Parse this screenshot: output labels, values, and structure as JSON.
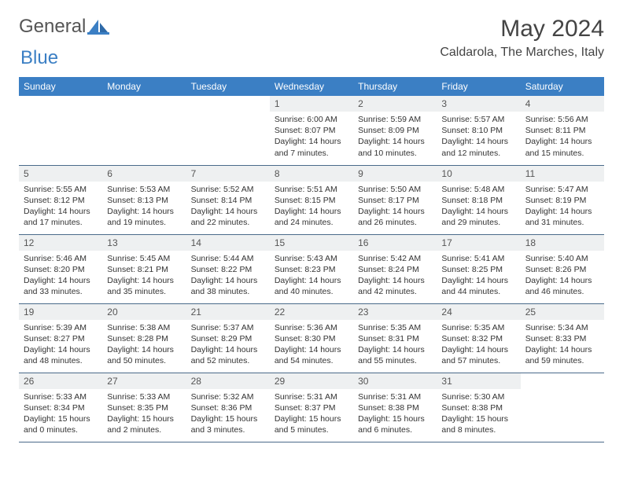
{
  "brand": {
    "text_gray": "General",
    "text_blue": "Blue",
    "icon_color": "#3b7fc4"
  },
  "title": "May 2024",
  "location": "Caldarola, The Marches, Italy",
  "colors": {
    "header_bg": "#3b7fc4",
    "daynum_bg": "#eef0f1",
    "row_border": "#4a6a8a"
  },
  "weekdays": [
    "Sunday",
    "Monday",
    "Tuesday",
    "Wednesday",
    "Thursday",
    "Friday",
    "Saturday"
  ],
  "weeks": [
    [
      {
        "n": "",
        "lines": []
      },
      {
        "n": "",
        "lines": []
      },
      {
        "n": "",
        "lines": []
      },
      {
        "n": "1",
        "lines": [
          "Sunrise: 6:00 AM",
          "Sunset: 8:07 PM",
          "Daylight: 14 hours",
          "and 7 minutes."
        ]
      },
      {
        "n": "2",
        "lines": [
          "Sunrise: 5:59 AM",
          "Sunset: 8:09 PM",
          "Daylight: 14 hours",
          "and 10 minutes."
        ]
      },
      {
        "n": "3",
        "lines": [
          "Sunrise: 5:57 AM",
          "Sunset: 8:10 PM",
          "Daylight: 14 hours",
          "and 12 minutes."
        ]
      },
      {
        "n": "4",
        "lines": [
          "Sunrise: 5:56 AM",
          "Sunset: 8:11 PM",
          "Daylight: 14 hours",
          "and 15 minutes."
        ]
      }
    ],
    [
      {
        "n": "5",
        "lines": [
          "Sunrise: 5:55 AM",
          "Sunset: 8:12 PM",
          "Daylight: 14 hours",
          "and 17 minutes."
        ]
      },
      {
        "n": "6",
        "lines": [
          "Sunrise: 5:53 AM",
          "Sunset: 8:13 PM",
          "Daylight: 14 hours",
          "and 19 minutes."
        ]
      },
      {
        "n": "7",
        "lines": [
          "Sunrise: 5:52 AM",
          "Sunset: 8:14 PM",
          "Daylight: 14 hours",
          "and 22 minutes."
        ]
      },
      {
        "n": "8",
        "lines": [
          "Sunrise: 5:51 AM",
          "Sunset: 8:15 PM",
          "Daylight: 14 hours",
          "and 24 minutes."
        ]
      },
      {
        "n": "9",
        "lines": [
          "Sunrise: 5:50 AM",
          "Sunset: 8:17 PM",
          "Daylight: 14 hours",
          "and 26 minutes."
        ]
      },
      {
        "n": "10",
        "lines": [
          "Sunrise: 5:48 AM",
          "Sunset: 8:18 PM",
          "Daylight: 14 hours",
          "and 29 minutes."
        ]
      },
      {
        "n": "11",
        "lines": [
          "Sunrise: 5:47 AM",
          "Sunset: 8:19 PM",
          "Daylight: 14 hours",
          "and 31 minutes."
        ]
      }
    ],
    [
      {
        "n": "12",
        "lines": [
          "Sunrise: 5:46 AM",
          "Sunset: 8:20 PM",
          "Daylight: 14 hours",
          "and 33 minutes."
        ]
      },
      {
        "n": "13",
        "lines": [
          "Sunrise: 5:45 AM",
          "Sunset: 8:21 PM",
          "Daylight: 14 hours",
          "and 35 minutes."
        ]
      },
      {
        "n": "14",
        "lines": [
          "Sunrise: 5:44 AM",
          "Sunset: 8:22 PM",
          "Daylight: 14 hours",
          "and 38 minutes."
        ]
      },
      {
        "n": "15",
        "lines": [
          "Sunrise: 5:43 AM",
          "Sunset: 8:23 PM",
          "Daylight: 14 hours",
          "and 40 minutes."
        ]
      },
      {
        "n": "16",
        "lines": [
          "Sunrise: 5:42 AM",
          "Sunset: 8:24 PM",
          "Daylight: 14 hours",
          "and 42 minutes."
        ]
      },
      {
        "n": "17",
        "lines": [
          "Sunrise: 5:41 AM",
          "Sunset: 8:25 PM",
          "Daylight: 14 hours",
          "and 44 minutes."
        ]
      },
      {
        "n": "18",
        "lines": [
          "Sunrise: 5:40 AM",
          "Sunset: 8:26 PM",
          "Daylight: 14 hours",
          "and 46 minutes."
        ]
      }
    ],
    [
      {
        "n": "19",
        "lines": [
          "Sunrise: 5:39 AM",
          "Sunset: 8:27 PM",
          "Daylight: 14 hours",
          "and 48 minutes."
        ]
      },
      {
        "n": "20",
        "lines": [
          "Sunrise: 5:38 AM",
          "Sunset: 8:28 PM",
          "Daylight: 14 hours",
          "and 50 minutes."
        ]
      },
      {
        "n": "21",
        "lines": [
          "Sunrise: 5:37 AM",
          "Sunset: 8:29 PM",
          "Daylight: 14 hours",
          "and 52 minutes."
        ]
      },
      {
        "n": "22",
        "lines": [
          "Sunrise: 5:36 AM",
          "Sunset: 8:30 PM",
          "Daylight: 14 hours",
          "and 54 minutes."
        ]
      },
      {
        "n": "23",
        "lines": [
          "Sunrise: 5:35 AM",
          "Sunset: 8:31 PM",
          "Daylight: 14 hours",
          "and 55 minutes."
        ]
      },
      {
        "n": "24",
        "lines": [
          "Sunrise: 5:35 AM",
          "Sunset: 8:32 PM",
          "Daylight: 14 hours",
          "and 57 minutes."
        ]
      },
      {
        "n": "25",
        "lines": [
          "Sunrise: 5:34 AM",
          "Sunset: 8:33 PM",
          "Daylight: 14 hours",
          "and 59 minutes."
        ]
      }
    ],
    [
      {
        "n": "26",
        "lines": [
          "Sunrise: 5:33 AM",
          "Sunset: 8:34 PM",
          "Daylight: 15 hours",
          "and 0 minutes."
        ]
      },
      {
        "n": "27",
        "lines": [
          "Sunrise: 5:33 AM",
          "Sunset: 8:35 PM",
          "Daylight: 15 hours",
          "and 2 minutes."
        ]
      },
      {
        "n": "28",
        "lines": [
          "Sunrise: 5:32 AM",
          "Sunset: 8:36 PM",
          "Daylight: 15 hours",
          "and 3 minutes."
        ]
      },
      {
        "n": "29",
        "lines": [
          "Sunrise: 5:31 AM",
          "Sunset: 8:37 PM",
          "Daylight: 15 hours",
          "and 5 minutes."
        ]
      },
      {
        "n": "30",
        "lines": [
          "Sunrise: 5:31 AM",
          "Sunset: 8:38 PM",
          "Daylight: 15 hours",
          "and 6 minutes."
        ]
      },
      {
        "n": "31",
        "lines": [
          "Sunrise: 5:30 AM",
          "Sunset: 8:38 PM",
          "Daylight: 15 hours",
          "and 8 minutes."
        ]
      },
      {
        "n": "",
        "lines": []
      }
    ]
  ]
}
